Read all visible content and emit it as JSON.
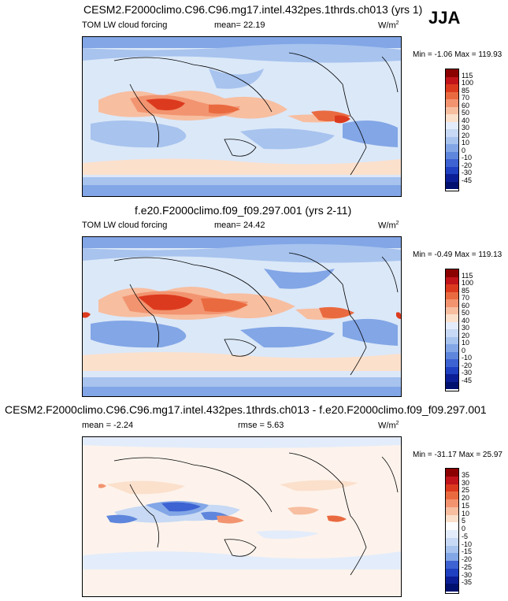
{
  "season": "JJA",
  "panels": [
    {
      "title": "CESM2.F2000climo.C96.C96.mg17.intel.432pes.1thrds.ch013 (yrs 1)",
      "variable": "TOM LW cloud forcing",
      "stat1": "mean=  22.19",
      "stat2": "",
      "units": "W/m",
      "units_exp": "2",
      "minmax": "Min =  -1.06 Max = 119.93",
      "levels": [
        "115",
        "100",
        "85",
        "70",
        "60",
        "50",
        "40",
        "30",
        "20",
        "10",
        "0",
        "-10",
        "-20",
        "-30",
        "-45"
      ],
      "colors": [
        "#8b0000",
        "#c0141a",
        "#dc3a1e",
        "#ea6a40",
        "#f29470",
        "#f7bea0",
        "#fbe0cc",
        "#e3ecfa",
        "#c7d9f4",
        "#a7c3ee",
        "#82a6e6",
        "#5e86dc",
        "#3d62d2",
        "#1f40c0",
        "#0b1e96",
        "#00106e"
      ]
    },
    {
      "title": "f.e20.F2000climo.f09_f09.297.001 (yrs 2-11)",
      "variable": "TOM LW cloud forcing",
      "stat1": "mean=  24.42",
      "stat2": "",
      "units": "W/m",
      "units_exp": "2",
      "minmax": "Min =  -0.49 Max = 119.13",
      "levels": [
        "115",
        "100",
        "85",
        "70",
        "60",
        "50",
        "40",
        "30",
        "20",
        "10",
        "0",
        "-10",
        "-20",
        "-30",
        "-45"
      ],
      "colors": [
        "#8b0000",
        "#c0141a",
        "#dc3a1e",
        "#ea6a40",
        "#f29470",
        "#f7bea0",
        "#fbe0cc",
        "#e3ecfa",
        "#c7d9f4",
        "#a7c3ee",
        "#82a6e6",
        "#5e86dc",
        "#3d62d2",
        "#1f40c0",
        "#0b1e96",
        "#00106e"
      ]
    },
    {
      "title": "CESM2.F2000climo.C96.C96.mg17.intel.432pes.1thrds.ch013 - f.e20.F2000climo.f09_f09.297.001",
      "variable": "",
      "stat1": "mean =  -2.24",
      "stat2": "rmse =  5.63",
      "units": "W/m",
      "units_exp": "2",
      "minmax": "Min = -31.17 Max =  25.97",
      "levels": [
        "35",
        "30",
        "25",
        "20",
        "15",
        "10",
        "5",
        "0",
        "-5",
        "-10",
        "-15",
        "-20",
        "-25",
        "-30",
        "-35"
      ],
      "colors": [
        "#8b0000",
        "#c0141a",
        "#dc3a1e",
        "#ea6a40",
        "#f29470",
        "#f7bea0",
        "#fbe0cc",
        "#ffffff",
        "#e3ecfa",
        "#c7d9f4",
        "#a7c3ee",
        "#82a6e6",
        "#3d62d2",
        "#1f40c0",
        "#0b1e96",
        "#00106e"
      ]
    }
  ]
}
